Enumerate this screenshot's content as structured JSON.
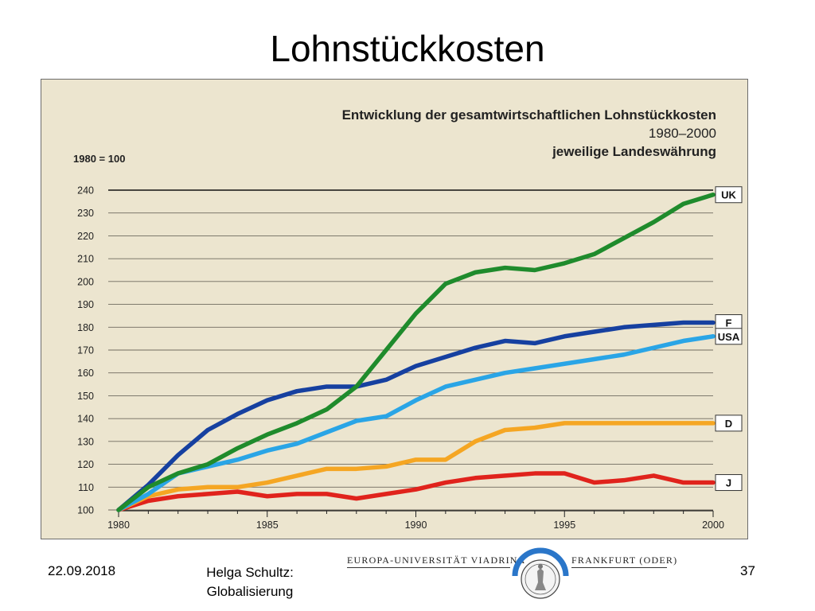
{
  "slide": {
    "title": "Lohnstückkosten",
    "footer_date": "22.09.2018",
    "footer_author_line1": "Helga Schultz:",
    "footer_author_line2": "Globalisierung",
    "page_number": "37",
    "university_left": "EUROPA-UNIVERSITÄT VIADRINA",
    "university_right": "FRANKFURT (ODER)"
  },
  "colors": {
    "background": "#ece5cf",
    "grid": "#6f6a5f",
    "UK": "#1f8b2c",
    "F": "#1640a0",
    "USA": "#2aa5e6",
    "D": "#f5a623",
    "J": "#e0231c"
  },
  "chart_data": {
    "type": "line",
    "title": "Entwicklung der gesamtwirtschaftlichen Lohnstückkosten",
    "subtitle": "1980–2000",
    "subtitle2": "jeweilige Landeswährung",
    "ylabel": "1980 = 100",
    "xlabel": "",
    "xlim": [
      1980,
      2000
    ],
    "ylim": [
      100,
      240
    ],
    "x_ticks": [
      1980,
      1985,
      1990,
      1995,
      2000
    ],
    "y_ticks": [
      100,
      110,
      120,
      130,
      140,
      150,
      160,
      170,
      180,
      190,
      200,
      210,
      220,
      230,
      240
    ],
    "grid": true,
    "legend": "right-end labels",
    "x": [
      1980,
      1981,
      1982,
      1983,
      1984,
      1985,
      1986,
      1987,
      1988,
      1989,
      1990,
      1991,
      1992,
      1993,
      1994,
      1995,
      1996,
      1997,
      1998,
      1999,
      2000
    ],
    "series": [
      {
        "name": "UK",
        "values": [
          100,
          110,
          116,
          120,
          127,
          133,
          138,
          144,
          154,
          170,
          186,
          199,
          204,
          206,
          205,
          208,
          212,
          219,
          226,
          234,
          238
        ]
      },
      {
        "name": "F",
        "values": [
          100,
          111,
          124,
          135,
          142,
          148,
          152,
          154,
          154,
          157,
          163,
          167,
          171,
          174,
          173,
          176,
          178,
          180,
          181,
          182,
          182
        ]
      },
      {
        "name": "USA",
        "values": [
          100,
          107,
          116,
          119,
          122,
          126,
          129,
          134,
          139,
          141,
          148,
          154,
          157,
          160,
          162,
          164,
          166,
          168,
          171,
          174,
          176
        ]
      },
      {
        "name": "D",
        "values": [
          100,
          106,
          109,
          110,
          110,
          112,
          115,
          118,
          118,
          119,
          122,
          122,
          130,
          135,
          136,
          138,
          138,
          138,
          138,
          138,
          138
        ]
      },
      {
        "name": "J",
        "values": [
          100,
          104,
          106,
          107,
          108,
          106,
          107,
          107,
          105,
          107,
          109,
          112,
          114,
          115,
          116,
          116,
          112,
          113,
          115,
          112,
          112
        ]
      }
    ]
  }
}
